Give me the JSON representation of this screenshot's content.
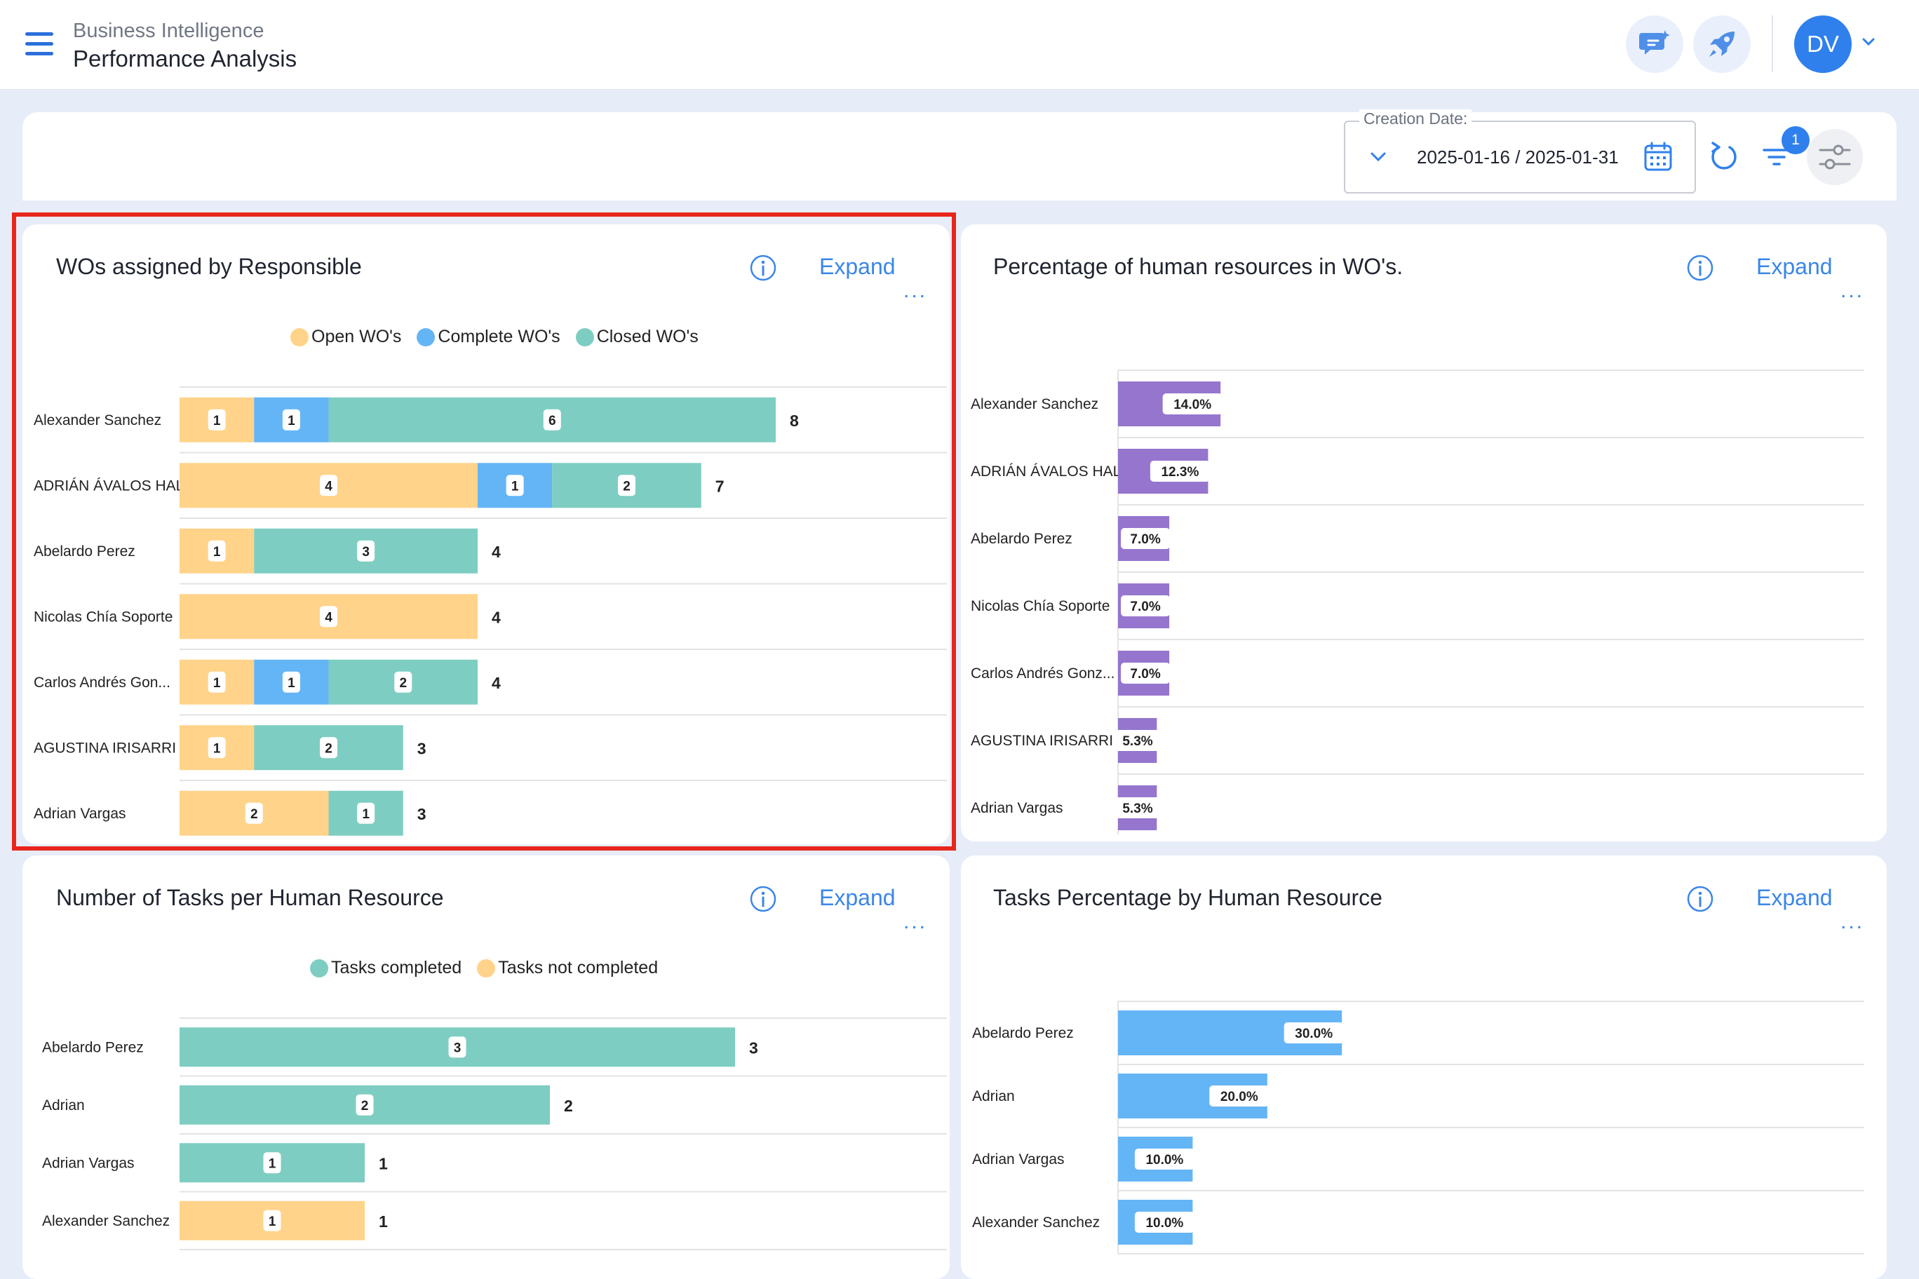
{
  "header": {
    "app_subtitle": "Business Intelligence",
    "app_title": "Performance Analysis",
    "avatar_initials": "DV"
  },
  "filters": {
    "date_label": "Creation Date:",
    "date_value": "2025-01-16 / 2025-01-31",
    "filter_count": "1"
  },
  "colors": {
    "open": "#ffd38a",
    "complete": "#64b5f6",
    "closed": "#7ecdc2",
    "purple": "#9575cd",
    "blue_pct": "#64b5f6",
    "accent": "#3a86e8"
  },
  "cards": {
    "wos": {
      "title": "WOs assigned by Responsible",
      "expand": "Expand",
      "more": "..."
    },
    "hr_pct": {
      "title": "Percentage of human resources in WO's.",
      "expand": "Expand",
      "more": "..."
    },
    "tasks": {
      "title": "Number of Tasks per Human Resource",
      "expand": "Expand",
      "more": "..."
    },
    "tasks_pct": {
      "title": "Tasks Percentage by Human Resource",
      "expand": "Expand",
      "more": "..."
    }
  },
  "legends": {
    "wos": [
      "Open WO's",
      "Complete WO's",
      "Closed WO's"
    ],
    "tasks": [
      "Tasks completed",
      "Tasks not completed"
    ]
  },
  "chart_data": [
    {
      "type": "bar",
      "orientation": "horizontal",
      "stacked": true,
      "title": "WOs assigned by Responsible",
      "categories": [
        "Alexander Sanchez",
        "ADRIÁN ÁVALOS HAL",
        "Abelardo Perez",
        "Nicolas Chía Soporte",
        "Carlos Andrés Gon...",
        "AGUSTINA IRISARRI",
        "Adrian Vargas"
      ],
      "series": [
        {
          "name": "Open WO's",
          "values": [
            1,
            4,
            1,
            4,
            1,
            1,
            2
          ]
        },
        {
          "name": "Complete WO's",
          "values": [
            1,
            1,
            0,
            0,
            1,
            0,
            0
          ]
        },
        {
          "name": "Closed WO's",
          "values": [
            6,
            2,
            3,
            0,
            2,
            2,
            1
          ]
        }
      ],
      "totals": [
        8,
        7,
        4,
        4,
        4,
        3,
        3
      ],
      "legend": "top"
    },
    {
      "type": "bar",
      "orientation": "horizontal",
      "title": "Percentage of human resources in WO's.",
      "categories": [
        "Alexander Sanchez",
        "ADRIÁN ÁVALOS HAL",
        "Abelardo Perez",
        "Nicolas Chía Soporte",
        "Carlos Andrés Gonz...",
        "AGUSTINA IRISARRI",
        "Adrian Vargas"
      ],
      "values": [
        14.0,
        12.3,
        7.0,
        7.0,
        7.0,
        5.3,
        5.3
      ],
      "labels": [
        "14.0%",
        "12.3%",
        "7.0%",
        "7.0%",
        "7.0%",
        "5.3%",
        "5.3%"
      ]
    },
    {
      "type": "bar",
      "orientation": "horizontal",
      "stacked": true,
      "title": "Number of Tasks per Human Resource",
      "categories": [
        "Abelardo Perez",
        "Adrian",
        "Adrian Vargas",
        "Alexander Sanchez"
      ],
      "series": [
        {
          "name": "Tasks completed",
          "values": [
            3,
            2,
            1,
            0
          ]
        },
        {
          "name": "Tasks not completed",
          "values": [
            0,
            0,
            0,
            1
          ]
        }
      ],
      "totals": [
        3,
        2,
        1,
        1
      ],
      "legend": "top"
    },
    {
      "type": "bar",
      "orientation": "horizontal",
      "title": "Tasks Percentage by Human Resource",
      "categories": [
        "Abelardo Perez",
        "Adrian",
        "Adrian Vargas",
        "Alexander Sanchez"
      ],
      "values": [
        30.0,
        20.0,
        10.0,
        10.0
      ],
      "labels": [
        "30.0%",
        "20.0%",
        "10.0%",
        "10.0%"
      ]
    }
  ]
}
